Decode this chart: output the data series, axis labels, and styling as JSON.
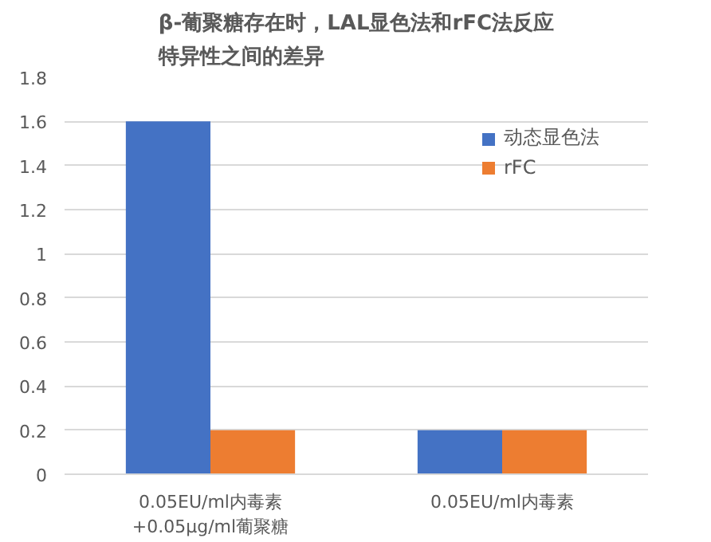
{
  "chart_data": {
    "type": "bar",
    "title": "β-葡聚糖存在时，LAL显色法和rFC法反应特异性之间的差异",
    "categories": [
      "0.05EU/ml内毒素\n+0.05μg/ml葡聚糖",
      "0.05EU/ml内毒素"
    ],
    "series": [
      {
        "name": "动态显色法",
        "color": "#4472c4",
        "values": [
          1.6,
          0.2
        ]
      },
      {
        "name": "rFC",
        "color": "#ed7d31",
        "values": [
          0.2,
          0.2
        ]
      }
    ],
    "ylim": [
      0,
      1.8
    ],
    "yticks": [
      0,
      {
        "value": 0.2,
        "label": "0.2"
      },
      {
        "value": 0.4,
        "label": "0.4"
      },
      {
        "value": 0.6,
        "label": "0.6"
      },
      {
        "value": 0.8,
        "label": "0.8"
      },
      1,
      {
        "value": 1.2,
        "label": "1.2"
      },
      {
        "value": 1.4,
        "label": "1.4"
      },
      {
        "value": 1.6,
        "label": "1.6"
      },
      {
        "value": 1.8,
        "label": "1.8"
      }
    ],
    "grid": "y",
    "legend": "top right"
  }
}
